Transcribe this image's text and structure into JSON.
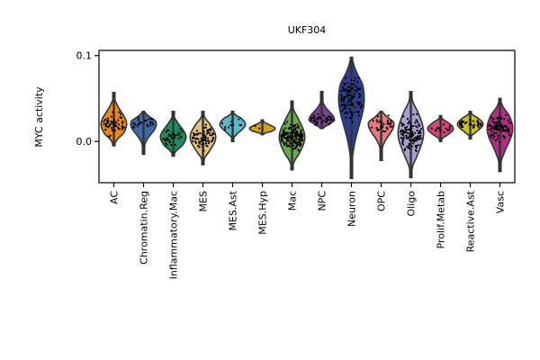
{
  "chart_data": {
    "type": "violin",
    "title": "UKF304",
    "xlabel": "",
    "ylabel": "MYC activity",
    "ylim": [
      -0.048,
      0.106
    ],
    "yticks": [
      0.0,
      0.1
    ],
    "ytick_labels": [
      "0.0",
      "0.1"
    ],
    "grid": false,
    "legend": "none",
    "categories": [
      "AC",
      "Chromatin.Reg",
      "Inflammatory.Mac",
      "MES",
      "MES.Ast",
      "MES.Hyp",
      "Mac",
      "NPC",
      "Neuron",
      "OPC",
      "Oligo",
      "Prolif.Metab",
      "Reactive.Ast",
      "Vasc"
    ],
    "violins": [
      {
        "category": "AC",
        "color": "#e8871e",
        "min": -0.005,
        "max": 0.057,
        "median": 0.02,
        "count": 55
      },
      {
        "category": "Chromatin.Reg",
        "color": "#3a6aa8",
        "min": -0.015,
        "max": 0.035,
        "median": 0.02,
        "count": 22
      },
      {
        "category": "Inflammatory.Mac",
        "color": "#1f8a5b",
        "min": -0.017,
        "max": 0.035,
        "median": 0.005,
        "count": 35
      },
      {
        "category": "MES",
        "color": "#e6c07b",
        "min": -0.027,
        "max": 0.035,
        "median": 0.005,
        "count": 70
      },
      {
        "category": "MES.Ast",
        "color": "#5ab7c7",
        "min": 0.0,
        "max": 0.035,
        "median": 0.02,
        "count": 10
      },
      {
        "category": "MES.Hyp",
        "color": "#d4a017",
        "min": 0.008,
        "max": 0.025,
        "median": 0.015,
        "count": 2
      },
      {
        "category": "Mac",
        "color": "#6aa84f",
        "min": -0.033,
        "max": 0.047,
        "median": 0.005,
        "count": 160
      },
      {
        "category": "NPC",
        "color": "#7b3f98",
        "min": 0.015,
        "max": 0.058,
        "median": 0.025,
        "count": 40
      },
      {
        "category": "Neuron",
        "color": "#2e3f8f",
        "min": -0.043,
        "max": 0.098,
        "median": 0.05,
        "count": 110
      },
      {
        "category": "OPC",
        "color": "#e8787a",
        "min": -0.022,
        "max": 0.035,
        "median": 0.02,
        "count": 30
      },
      {
        "category": "Oligo",
        "color": "#a89fd1",
        "min": -0.042,
        "max": 0.058,
        "median": 0.01,
        "count": 120
      },
      {
        "category": "Prolif.Metab",
        "color": "#d6487a",
        "min": 0.0,
        "max": 0.03,
        "median": 0.015,
        "count": 15
      },
      {
        "category": "Reactive.Ast",
        "color": "#c9c41e",
        "min": 0.003,
        "max": 0.035,
        "median": 0.02,
        "count": 40
      },
      {
        "category": "Vasc",
        "color": "#b32d84",
        "min": -0.035,
        "max": 0.05,
        "median": 0.015,
        "count": 90
      }
    ]
  }
}
